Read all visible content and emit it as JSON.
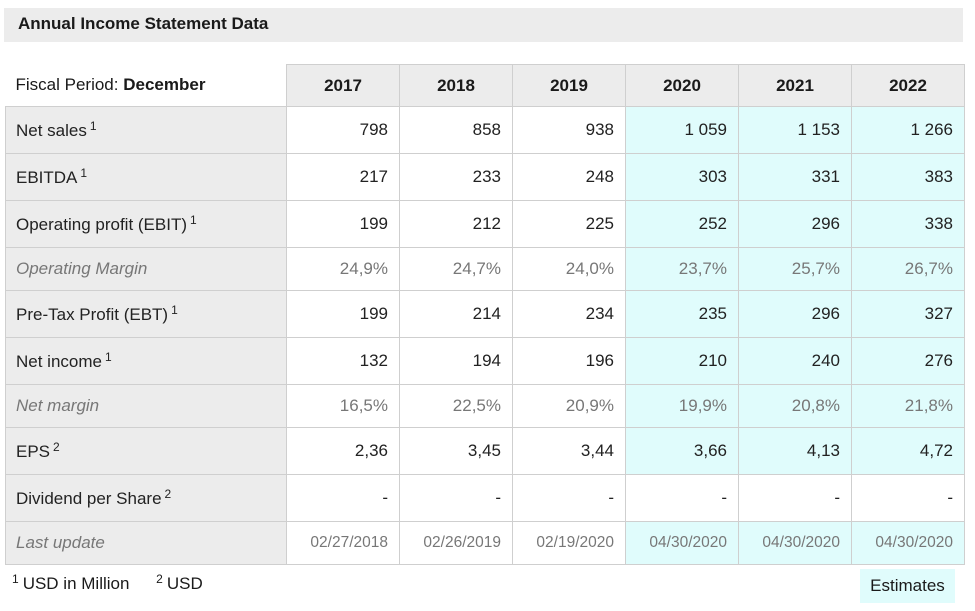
{
  "title": "Annual Income Statement Data",
  "fiscal_period": {
    "label": "Fiscal Period:",
    "value": "December"
  },
  "years": [
    "2017",
    "2018",
    "2019",
    "2020",
    "2021",
    "2022"
  ],
  "rows": [
    {
      "label": "Net sales",
      "note": "1",
      "values": [
        "798",
        "858",
        "938",
        "1 059",
        "1 153",
        "1 266"
      ]
    },
    {
      "label": "EBITDA",
      "note": "1",
      "values": [
        "217",
        "233",
        "248",
        "303",
        "331",
        "383"
      ]
    },
    {
      "label": "Operating profit (EBIT)",
      "note": "1",
      "values": [
        "199",
        "212",
        "225",
        "252",
        "296",
        "338"
      ]
    },
    {
      "label": "Operating Margin",
      "note": "",
      "values": [
        "24,9%",
        "24,7%",
        "24,0%",
        "23,7%",
        "25,7%",
        "26,7%"
      ]
    },
    {
      "label": "Pre-Tax Profit (EBT)",
      "note": "1",
      "values": [
        "199",
        "214",
        "234",
        "235",
        "296",
        "327"
      ]
    },
    {
      "label": "Net income",
      "note": "1",
      "values": [
        "132",
        "194",
        "196",
        "210",
        "240",
        "276"
      ]
    },
    {
      "label": "Net margin",
      "note": "",
      "values": [
        "16,5%",
        "22,5%",
        "20,9%",
        "19,9%",
        "20,8%",
        "21,8%"
      ]
    },
    {
      "label": "EPS",
      "note": "2",
      "values": [
        "2,36",
        "3,45",
        "3,44",
        "3,66",
        "4,13",
        "4,72"
      ]
    },
    {
      "label": "Dividend per Share",
      "note": "2",
      "values": [
        "-",
        "-",
        "-",
        "-",
        "-",
        "-"
      ]
    },
    {
      "label": "Last update",
      "note": "",
      "values": [
        "02/27/2018",
        "02/26/2019",
        "02/19/2020",
        "04/30/2020",
        "04/30/2020",
        "04/30/2020"
      ]
    }
  ],
  "footnotes": [
    {
      "mark": "1",
      "text": "USD in Million"
    },
    {
      "mark": "2",
      "text": "USD"
    }
  ],
  "estimates_label": "Estimates",
  "colors": {
    "estimate_bg": "#e0fcfc",
    "header_bg": "#ececec"
  }
}
